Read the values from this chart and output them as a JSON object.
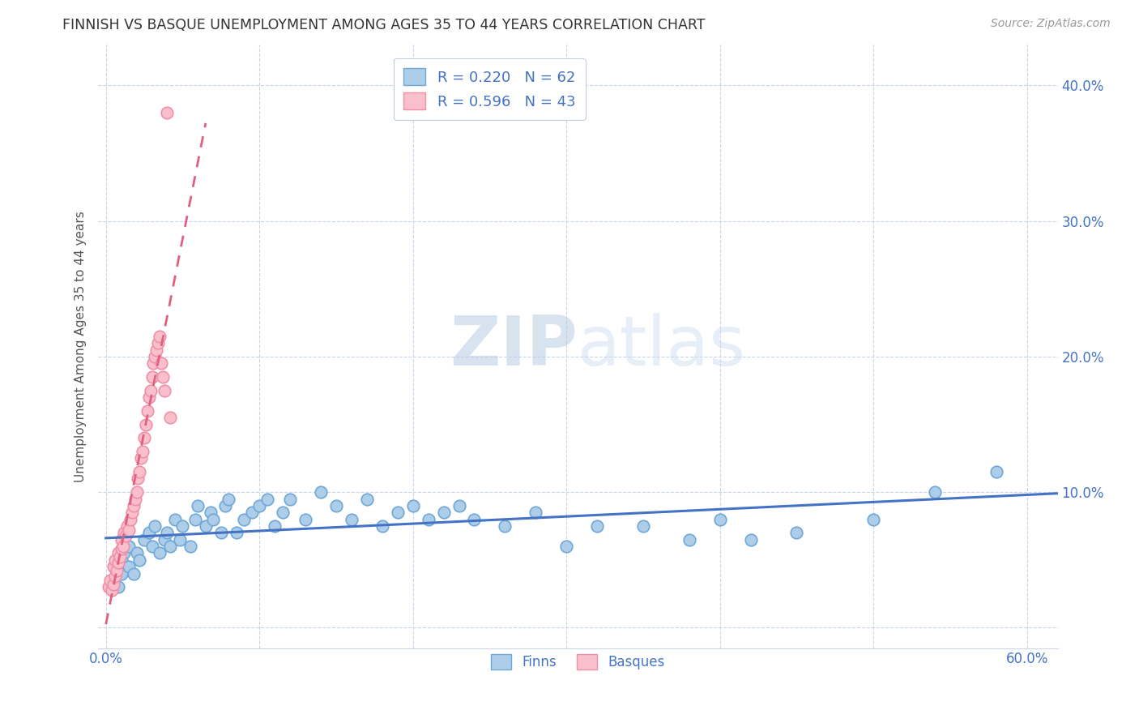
{
  "title": "FINNISH VS BASQUE UNEMPLOYMENT AMONG AGES 35 TO 44 YEARS CORRELATION CHART",
  "source": "Source: ZipAtlas.com",
  "ylabel": "Unemployment Among Ages 35 to 44 years",
  "xlim": [
    -0.005,
    0.62
  ],
  "ylim": [
    -0.015,
    0.43
  ],
  "xticks": [
    0.0,
    0.1,
    0.2,
    0.3,
    0.4,
    0.5,
    0.6
  ],
  "yticks": [
    0.0,
    0.1,
    0.2,
    0.3,
    0.4
  ],
  "xticklabels": [
    "0.0%",
    "",
    "",
    "",
    "",
    "",
    "60.0%"
  ],
  "yticklabels_right": [
    "",
    "10.0%",
    "20.0%",
    "30.0%",
    "40.0%"
  ],
  "finn_color": "#6ea8d8",
  "finn_face": "#aecde8",
  "basque_color": "#f090a8",
  "basque_face": "#f9c0cc",
  "finn_R": 0.22,
  "finn_N": 62,
  "basque_R": 0.596,
  "basque_N": 43,
  "legend_text_color": "#4472c4",
  "watermark_zip": "ZIP",
  "watermark_atlas": "atlas",
  "background_color": "#ffffff",
  "grid_color": "#c8d4e8",
  "finn_line_color": "#4472c4",
  "basque_line_color": "#e06080",
  "finn_scatter_x": [
    0.005,
    0.008,
    0.01,
    0.01,
    0.012,
    0.015,
    0.015,
    0.018,
    0.02,
    0.022,
    0.025,
    0.028,
    0.03,
    0.032,
    0.035,
    0.038,
    0.04,
    0.042,
    0.045,
    0.048,
    0.05,
    0.055,
    0.058,
    0.06,
    0.065,
    0.068,
    0.07,
    0.075,
    0.078,
    0.08,
    0.085,
    0.09,
    0.095,
    0.1,
    0.105,
    0.11,
    0.115,
    0.12,
    0.13,
    0.14,
    0.15,
    0.16,
    0.17,
    0.18,
    0.19,
    0.2,
    0.21,
    0.22,
    0.23,
    0.24,
    0.26,
    0.28,
    0.3,
    0.32,
    0.35,
    0.38,
    0.4,
    0.42,
    0.45,
    0.5,
    0.54,
    0.58
  ],
  "finn_scatter_y": [
    0.035,
    0.03,
    0.04,
    0.05,
    0.055,
    0.045,
    0.06,
    0.04,
    0.055,
    0.05,
    0.065,
    0.07,
    0.06,
    0.075,
    0.055,
    0.065,
    0.07,
    0.06,
    0.08,
    0.065,
    0.075,
    0.06,
    0.08,
    0.09,
    0.075,
    0.085,
    0.08,
    0.07,
    0.09,
    0.095,
    0.07,
    0.08,
    0.085,
    0.09,
    0.095,
    0.075,
    0.085,
    0.095,
    0.08,
    0.1,
    0.09,
    0.08,
    0.095,
    0.075,
    0.085,
    0.09,
    0.08,
    0.085,
    0.09,
    0.08,
    0.075,
    0.085,
    0.06,
    0.075,
    0.075,
    0.065,
    0.08,
    0.065,
    0.07,
    0.08,
    0.1,
    0.115
  ],
  "basque_scatter_x": [
    0.002,
    0.003,
    0.004,
    0.005,
    0.005,
    0.006,
    0.006,
    0.007,
    0.008,
    0.008,
    0.009,
    0.01,
    0.01,
    0.011,
    0.012,
    0.013,
    0.014,
    0.015,
    0.016,
    0.017,
    0.018,
    0.019,
    0.02,
    0.021,
    0.022,
    0.023,
    0.024,
    0.025,
    0.026,
    0.027,
    0.028,
    0.029,
    0.03,
    0.031,
    0.032,
    0.033,
    0.034,
    0.035,
    0.036,
    0.037,
    0.038,
    0.04,
    0.042
  ],
  "basque_scatter_y": [
    0.03,
    0.035,
    0.028,
    0.032,
    0.045,
    0.038,
    0.05,
    0.042,
    0.048,
    0.055,
    0.052,
    0.058,
    0.065,
    0.06,
    0.07,
    0.068,
    0.075,
    0.072,
    0.08,
    0.085,
    0.09,
    0.095,
    0.1,
    0.11,
    0.115,
    0.125,
    0.13,
    0.14,
    0.15,
    0.16,
    0.17,
    0.175,
    0.185,
    0.195,
    0.2,
    0.205,
    0.21,
    0.215,
    0.195,
    0.185,
    0.175,
    0.38,
    0.155
  ]
}
